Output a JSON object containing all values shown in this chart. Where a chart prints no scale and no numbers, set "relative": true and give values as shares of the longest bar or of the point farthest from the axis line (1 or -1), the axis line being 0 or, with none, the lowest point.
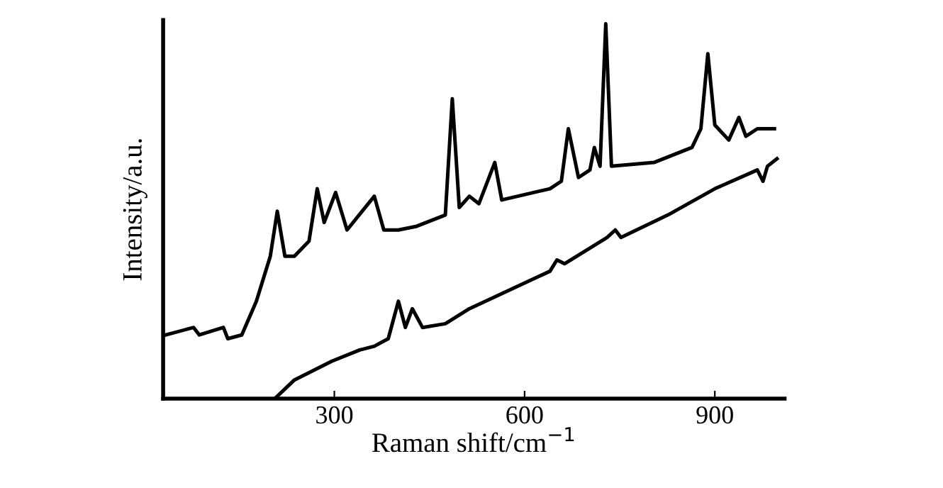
{
  "chart_data": {
    "type": "line",
    "relative": true,
    "xlabel": "Raman shift/cm$^{−1}$",
    "ylabel": "Intensity/a.u.",
    "xlim": [
      30,
      1010
    ],
    "xticks": [
      300,
      600,
      900
    ],
    "tick_labels": "x",
    "grid": false,
    "marker": "none",
    "line_style": "solid",
    "series": [
      {
        "color": "#000000",
        "x": [
          34,
          78,
          87,
          125,
          132,
          154,
          177,
          199,
          210,
          222,
          237,
          260,
          273,
          284,
          302,
          320,
          363,
          378,
          401,
          430,
          475,
          486,
          497,
          513,
          528,
          553,
          564,
          640,
          658,
          669,
          685,
          703,
          710,
          719,
          728,
          737,
          804,
          864,
          878,
          889,
          900,
          922,
          938,
          949,
          967,
          994
        ],
        "values": [
          0.17,
          0.19,
          0.17,
          0.19,
          0.16,
          0.17,
          0.26,
          0.38,
          0.5,
          0.38,
          0.38,
          0.42,
          0.56,
          0.47,
          0.55,
          0.45,
          0.54,
          0.45,
          0.45,
          0.46,
          0.49,
          0.8,
          0.51,
          0.54,
          0.52,
          0.63,
          0.53,
          0.56,
          0.58,
          0.72,
          0.59,
          0.61,
          0.67,
          0.62,
          1.0,
          0.62,
          0.63,
          0.67,
          0.72,
          0.92,
          0.73,
          0.69,
          0.75,
          0.7,
          0.72,
          0.72
        ]
      },
      {
        "color": "#000000",
        "x": [
          206,
          237,
          296,
          340,
          363,
          385,
          401,
          412,
          423,
          439,
          475,
          513,
          564,
          640,
          651,
          663,
          730,
          743,
          752,
          826,
          900,
          967,
          976,
          983,
          998
        ],
        "values": [
          0.0,
          0.05,
          0.1,
          0.13,
          0.14,
          0.16,
          0.26,
          0.19,
          0.24,
          0.19,
          0.2,
          0.24,
          0.28,
          0.34,
          0.37,
          0.36,
          0.43,
          0.45,
          0.43,
          0.49,
          0.56,
          0.61,
          0.58,
          0.62,
          0.64
        ]
      }
    ]
  }
}
